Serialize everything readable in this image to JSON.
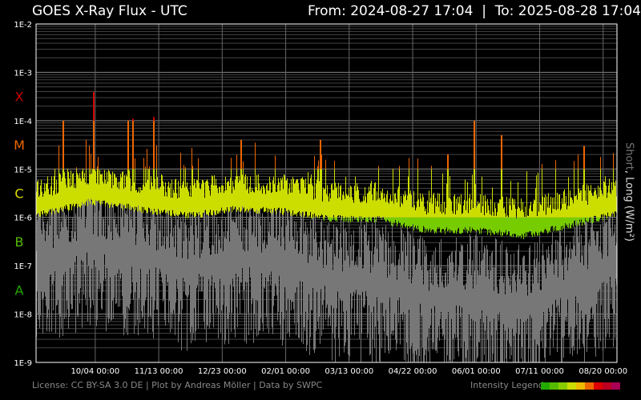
{
  "header": {
    "title": "GOES X-Ray Flux - UTC",
    "from_label": "From:",
    "from": "2024-08-27 17:04",
    "to_label": "To:",
    "to": "2025-08-28 17:04"
  },
  "footer": {
    "license": "License: CC BY-SA 3.0 DE | Plot by Andreas Möller | Data by SWPC",
    "legend_label": "Intensity Legend"
  },
  "legend_colors": [
    "#22aa00",
    "#55bb00",
    "#88cc00",
    "#ccdd00",
    "#eebb00",
    "#ee6600",
    "#dd0000",
    "#bb0022",
    "#aa0055"
  ],
  "chart_data": {
    "type": "line",
    "title": "GOES X-Ray Flux - UTC",
    "ylabel_short": "Short",
    "ylabel_sep": ", ",
    "ylabel_long": "Long (W/m²)",
    "yscale": "log",
    "ylim": [
      1e-09,
      0.01
    ],
    "yticks": [
      "1E-2",
      "1E-3",
      "1E-4",
      "1E-5",
      "1E-6",
      "1E-7",
      "1E-8",
      "1E-9"
    ],
    "xlim": [
      "2024-08-27 17:04",
      "2025-08-28 17:04"
    ],
    "xticks": [
      "10/04 00:00",
      "11/13 00:00",
      "12/23 00:00",
      "02/01 00:00",
      "03/13 00:00",
      "04/22 00:00",
      "06/01 00:00",
      "07/11 00:00",
      "08/20 00:00"
    ],
    "xtick_dates": [
      "2024-10-04",
      "2024-11-13",
      "2024-12-23",
      "2025-02-01",
      "2025-03-13",
      "2025-04-22",
      "2025-06-01",
      "2025-07-11",
      "2025-08-20"
    ],
    "classes": [
      {
        "label": "X",
        "color": "#cc0000"
      },
      {
        "label": "M",
        "color": "#ee6600"
      },
      {
        "label": "C",
        "color": "#dddd00"
      },
      {
        "label": "B",
        "color": "#55bb00"
      },
      {
        "label": "A",
        "color": "#22aa00"
      }
    ],
    "grid": true,
    "series": [
      {
        "name": "Long",
        "color_by_intensity": true,
        "background_monthly": {
          "dates": [
            "2024-09-01",
            "2024-10-01",
            "2024-11-01",
            "2024-12-01",
            "2025-01-01",
            "2025-02-01",
            "2025-03-01",
            "2025-04-01",
            "2025-05-01",
            "2025-06-01",
            "2025-07-01",
            "2025-08-01",
            "2025-08-28"
          ],
          "values": [
            2e-06,
            3.5e-06,
            2.5e-06,
            1.8e-06,
            2.5e-06,
            2.2e-06,
            1.6e-06,
            1.5e-06,
            9e-07,
            9e-07,
            7e-07,
            1.2e-06,
            2e-06
          ]
        },
        "peaks": {
          "dates": [
            "2024-09-14",
            "2024-10-03",
            "2024-10-25",
            "2024-10-28",
            "2024-11-10",
            "2025-01-04",
            "2025-02-23",
            "2025-05-14",
            "2025-05-31",
            "2025-06-17",
            "2025-08-08"
          ],
          "values": [
            0.0001,
            0.00039,
            0.0001,
            0.00011,
            0.00012,
            4e-05,
            4e-05,
            2e-05,
            0.0001,
            5e-05,
            3e-05
          ]
        }
      },
      {
        "name": "Short",
        "color": "#777777",
        "background_monthly": {
          "dates": [
            "2024-09-01",
            "2024-10-01",
            "2024-11-01",
            "2024-12-01",
            "2025-01-01",
            "2025-02-01",
            "2025-03-01",
            "2025-04-01",
            "2025-05-01",
            "2025-06-01",
            "2025-07-01",
            "2025-08-01",
            "2025-08-28"
          ],
          "values": [
            1e-07,
            2e-07,
            1.2e-07,
            6e-08,
            1e-07,
            8e-08,
            4e-08,
            3e-08,
            1.5e-08,
            1.5e-08,
            1e-08,
            3e-08,
            8e-08
          ]
        }
      }
    ]
  }
}
